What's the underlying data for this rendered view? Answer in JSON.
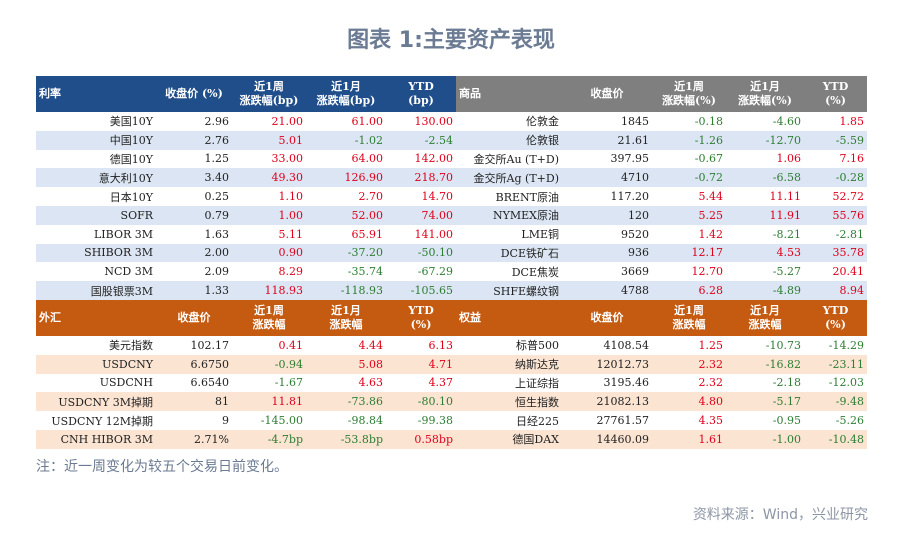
{
  "title": "图表 1:主要资产表现",
  "note": "注：近一周变化为较五个交易日前变化。",
  "source": "资料来源：Wind，兴业研究",
  "rates": {
    "headers": [
      "利率",
      "收盘价 (%)",
      "近1周",
      "涨跌幅(bp)",
      "近1月",
      "涨跌幅(bp)",
      "YTD",
      "(bp)"
    ],
    "rows": [
      [
        "美国10Y",
        "2.96",
        "21.00",
        "61.00",
        "130.00"
      ],
      [
        "中国10Y",
        "2.76",
        "5.01",
        "-1.02",
        "-2.54"
      ],
      [
        "德国10Y",
        "1.25",
        "33.00",
        "64.00",
        "142.00"
      ],
      [
        "意大利10Y",
        "3.40",
        "49.30",
        "126.90",
        "218.70"
      ],
      [
        "日本10Y",
        "0.25",
        "1.10",
        "2.70",
        "14.70"
      ],
      [
        "SOFR",
        "0.79",
        "1.00",
        "52.00",
        "74.00"
      ],
      [
        "LIBOR 3M",
        "1.63",
        "5.11",
        "65.91",
        "141.00"
      ],
      [
        "SHIBOR 3M",
        "2.00",
        "0.90",
        "-37.20",
        "-50.10"
      ],
      [
        "NCD 3M",
        "2.09",
        "8.29",
        "-35.74",
        "-67.29"
      ],
      [
        "国股银票3M",
        "1.33",
        "118.93",
        "-118.93",
        "-105.65"
      ]
    ]
  },
  "fx": {
    "headers": [
      "外汇",
      "收盘价",
      "近1周",
      "涨跌幅",
      "近1月",
      "涨跌幅",
      "YTD",
      "(%)"
    ],
    "rows": [
      [
        "美元指数",
        "102.17",
        "0.41",
        "4.44",
        "6.13"
      ],
      [
        "USDCNY",
        "6.6750",
        "-0.94",
        "5.08",
        "4.71"
      ],
      [
        "USDCNH",
        "6.6540",
        "-1.67",
        "4.63",
        "4.37"
      ],
      [
        "USDCNY 3M掉期",
        "81",
        "11.81",
        "-73.86",
        "-80.10"
      ],
      [
        "USDCNY 12M掉期",
        "9",
        "-145.00",
        "-98.84",
        "-99.38"
      ],
      [
        "CNH HIBOR 3M",
        "2.71%",
        "-4.7bp",
        "-53.8bp",
        "0.58bp"
      ]
    ]
  },
  "commodities": {
    "headers": [
      "商品",
      "收盘价",
      "近1周",
      "涨跌幅(%)",
      "近1月",
      "涨跌幅(%)",
      "YTD",
      "(%)"
    ],
    "rows": [
      [
        "伦敦金",
        "1845",
        "-0.18",
        "-4.60",
        "1.85"
      ],
      [
        "伦敦银",
        "21.61",
        "-1.26",
        "-12.70",
        "-5.59"
      ],
      [
        "金交所Au (T+D)",
        "397.95",
        "-0.67",
        "1.06",
        "7.16"
      ],
      [
        "金交所Ag (T+D)",
        "4710",
        "-0.72",
        "-6.58",
        "-0.28"
      ],
      [
        "BRENT原油",
        "117.20",
        "5.44",
        "11.11",
        "52.72"
      ],
      [
        "NYMEX原油",
        "120",
        "5.25",
        "11.91",
        "55.76"
      ],
      [
        "LME铜",
        "9520",
        "1.42",
        "-8.21",
        "-2.81"
      ],
      [
        "DCE铁矿石",
        "936",
        "12.17",
        "4.53",
        "35.78"
      ],
      [
        "DCE焦炭",
        "3669",
        "12.70",
        "-5.27",
        "20.41"
      ],
      [
        "SHFE螺纹钢",
        "4788",
        "6.28",
        "-4.89",
        "8.94"
      ]
    ]
  },
  "equities": {
    "headers": [
      "权益",
      "收盘价",
      "近1周",
      "涨跌幅",
      "近1月",
      "涨跌幅",
      "YTD",
      "(%)"
    ],
    "rows": [
      [
        "标普500",
        "4108.54",
        "1.25",
        "-10.73",
        "-14.29"
      ],
      [
        "纳斯达克",
        "12012.73",
        "2.32",
        "-16.82",
        "-23.11"
      ],
      [
        "上证综指",
        "3195.46",
        "2.32",
        "-2.18",
        "-12.03"
      ],
      [
        "恒生指数",
        "21082.13",
        "4.80",
        "-5.17",
        "-9.48"
      ],
      [
        "日经225",
        "27761.57",
        "4.35",
        "-0.95",
        "-5.26"
      ],
      [
        "德国DAX",
        "14460.09",
        "1.61",
        "-1.00",
        "-10.48"
      ]
    ]
  },
  "colors": {
    "rates_header": "#1f4e8a",
    "commodities_header": "#7f7f7f",
    "fx_header": "#c55a11",
    "equities_header": "#c55a11",
    "positive": "#e0001b",
    "negative": "#2e7d32"
  }
}
